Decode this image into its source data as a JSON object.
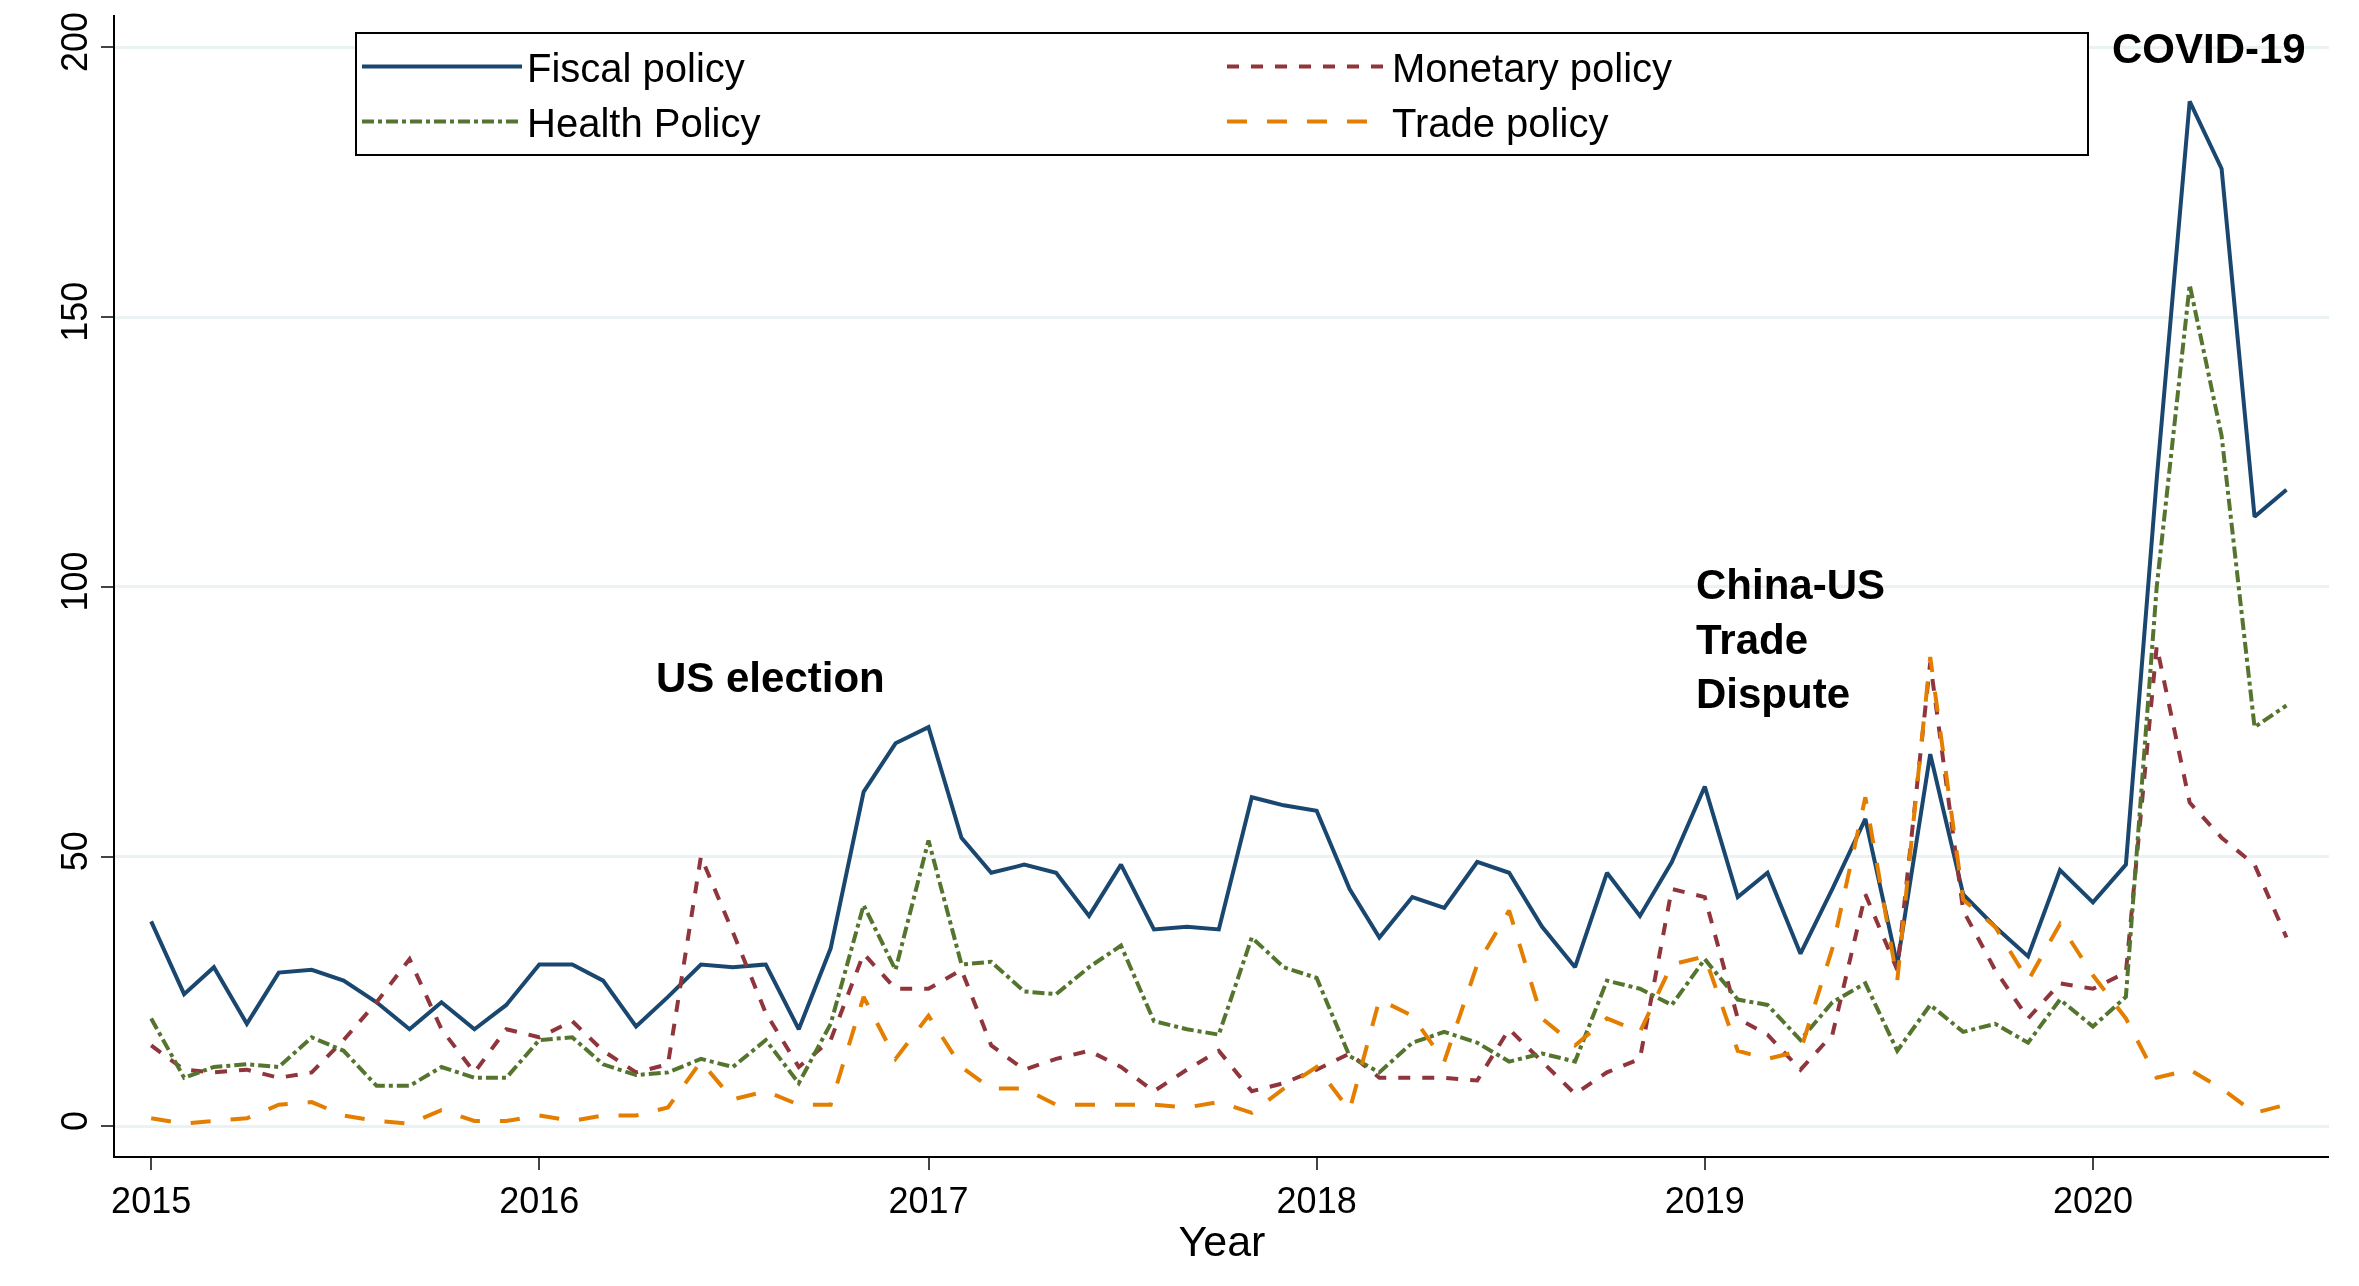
{
  "chart_data": {
    "type": "line",
    "xlabel": "Year",
    "x": [
      "2015-01",
      "2015-02",
      "2015-03",
      "2015-04",
      "2015-05",
      "2015-06",
      "2015-07",
      "2015-08",
      "2015-09",
      "2015-10",
      "2015-11",
      "2015-12",
      "2016-01",
      "2016-02",
      "2016-03",
      "2016-04",
      "2016-05",
      "2016-06",
      "2016-07",
      "2016-08",
      "2016-09",
      "2016-10",
      "2016-11",
      "2016-12",
      "2017-01",
      "2017-02",
      "2017-03",
      "2017-04",
      "2017-05",
      "2017-06",
      "2017-07",
      "2017-08",
      "2017-09",
      "2017-10",
      "2017-11",
      "2017-12",
      "2018-01",
      "2018-02",
      "2018-03",
      "2018-04",
      "2018-05",
      "2018-06",
      "2018-07",
      "2018-08",
      "2018-09",
      "2018-10",
      "2018-11",
      "2018-12",
      "2019-01",
      "2019-02",
      "2019-03",
      "2019-04",
      "2019-05",
      "2019-06",
      "2019-07",
      "2019-08",
      "2019-09",
      "2019-10",
      "2019-11",
      "2019-12",
      "2020-01",
      "2020-02",
      "2020-03",
      "2020-04",
      "2020-05",
      "2020-06",
      "2020-07"
    ],
    "series": [
      {
        "name": "Fiscal policy",
        "color": "#1a476f",
        "line_style": "solid",
        "values": [
          38,
          24.5,
          29.5,
          19,
          28.5,
          29,
          27,
          23,
          18,
          23,
          18,
          22.5,
          30,
          30,
          27,
          18.5,
          24,
          30,
          29.5,
          30,
          18,
          33,
          62,
          71,
          74,
          53.5,
          47,
          48.5,
          47,
          39,
          48.5,
          36.5,
          37,
          36.5,
          61,
          59.5,
          58.5,
          44,
          35,
          42.5,
          40.5,
          49,
          47,
          37,
          29.5,
          47,
          39,
          49,
          63,
          42.5,
          47,
          32,
          44,
          57,
          30,
          69,
          43,
          37,
          31.5,
          47.5,
          41.5,
          48.5,
          120,
          190,
          177.5,
          113,
          118
        ]
      },
      {
        "name": "Monetary policy",
        "color": "#90353b",
        "line_style": "dashed",
        "values": [
          15,
          10.5,
          10,
          10.5,
          9,
          10,
          16,
          23,
          31,
          18,
          10,
          18,
          16.5,
          19.5,
          14,
          10,
          11.5,
          50,
          36,
          21,
          11,
          16,
          32,
          25.5,
          25.5,
          29,
          15,
          10.5,
          12.5,
          14,
          11,
          6.5,
          10.5,
          14,
          6.5,
          8,
          10.5,
          13.5,
          9,
          9,
          9,
          8.5,
          18,
          12,
          6,
          10,
          12.5,
          44,
          42.5,
          20,
          17,
          10.5,
          17,
          43,
          29,
          86,
          40,
          29,
          20,
          26.5,
          25.5,
          28.5,
          89,
          60,
          53.5,
          48.5,
          35
        ]
      },
      {
        "name": "Health Policy",
        "color": "#55752f",
        "line_style": "dashdot",
        "values": [
          20,
          9,
          11,
          11.5,
          11,
          16.5,
          14,
          7.5,
          7.5,
          11,
          9,
          9,
          16,
          16.5,
          11.5,
          9.5,
          10,
          12.5,
          11,
          16,
          8,
          19,
          41,
          29,
          53,
          30,
          30.5,
          25,
          24.5,
          29.5,
          33.5,
          19.5,
          18,
          17,
          35,
          29.5,
          27.5,
          13,
          10,
          15.5,
          17.5,
          15.5,
          12,
          13.5,
          12,
          27,
          25.5,
          22.5,
          31,
          23.5,
          22.5,
          16,
          23,
          26.5,
          14,
          22.5,
          17.5,
          19,
          15.5,
          23.5,
          18.5,
          24,
          100,
          156,
          128,
          74,
          78
        ]
      },
      {
        "name": "Trade policy",
        "color": "#e37e00",
        "line_style": "longdash",
        "values": [
          1.5,
          0.5,
          1,
          1.5,
          4,
          4.5,
          2,
          1,
          0.5,
          3,
          1,
          1,
          2,
          1,
          2,
          2,
          3.5,
          12,
          5,
          6.5,
          4,
          4,
          24,
          12.5,
          20.5,
          11,
          7,
          7,
          4,
          4,
          4,
          4,
          3.5,
          4.5,
          2.5,
          7,
          11,
          3,
          23.5,
          20.5,
          12,
          30,
          40,
          20,
          15,
          20,
          17.5,
          30,
          31.5,
          14,
          12.5,
          14,
          33,
          61,
          27,
          87,
          42,
          37,
          27,
          37.5,
          28,
          20,
          9,
          10.5,
          7,
          2.5,
          4
        ]
      }
    ],
    "xlim": [
      "2014-11-28",
      "2020-08-10"
    ],
    "xticks": [
      {
        "value": "2015-01",
        "label": "2015"
      },
      {
        "value": "2016-01",
        "label": "2016"
      },
      {
        "value": "2017-01",
        "label": "2017"
      },
      {
        "value": "2018-01",
        "label": "2018"
      },
      {
        "value": "2019-01",
        "label": "2019"
      },
      {
        "value": "2020-01",
        "label": "2020"
      }
    ],
    "ylim": [
      -5.5,
      206
    ],
    "yticks": [
      0,
      50,
      100,
      150,
      200
    ],
    "grid": "y",
    "legend": "top",
    "marker": "none",
    "annotations": [
      "US election",
      "China-US\nTrade\nDispute",
      "COVID-19"
    ]
  }
}
